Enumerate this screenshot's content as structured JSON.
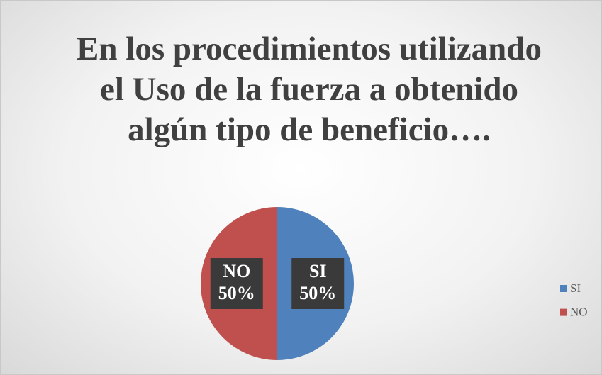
{
  "chart_data": {
    "type": "pie",
    "title": "En los procedimientos utilizando el Uso de la fuerza a obtenido algún tipo de beneficio….",
    "categories": [
      "SI",
      "NO"
    ],
    "values": [
      50,
      50
    ],
    "value_labels": [
      "50%",
      "50%"
    ],
    "colors": [
      "#4f81bd",
      "#c0504d"
    ],
    "legend": "right"
  }
}
